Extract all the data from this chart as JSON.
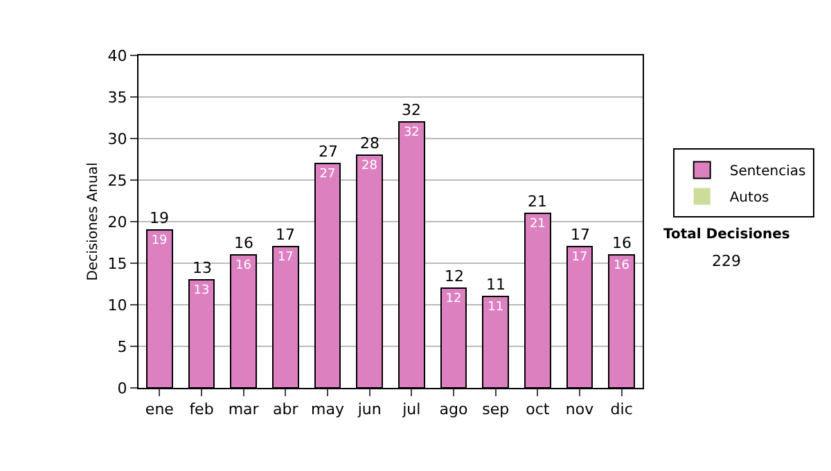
{
  "chart_data": {
    "type": "bar",
    "ylabel": "Decisiones Anual",
    "categories": [
      "ene",
      "feb",
      "mar",
      "abr",
      "may",
      "jun",
      "jul",
      "ago",
      "sep",
      "oct",
      "nov",
      "dic"
    ],
    "series": [
      {
        "name": "Sentencias",
        "color": "#dd80c0",
        "values": [
          19,
          13,
          16,
          17,
          27,
          28,
          32,
          12,
          11,
          21,
          17,
          16
        ],
        "value_labels": [
          "19",
          "13",
          "16",
          "17",
          "27",
          "28",
          "32",
          "12",
          "11",
          "21",
          "17",
          "16"
        ]
      },
      {
        "name": "Autos",
        "color": "#ccdd99",
        "values": [
          0,
          0,
          0,
          0,
          0,
          0,
          0,
          0,
          0,
          0,
          0,
          0
        ]
      }
    ],
    "stacked": true,
    "totals": [
      "19",
      "13",
      "16",
      "17",
      "27",
      "28",
      "32",
      "12",
      "11",
      "21",
      "17",
      "16"
    ],
    "ylim": [
      0,
      40
    ],
    "yticks": [
      0,
      5,
      10,
      15,
      20,
      25,
      30,
      35,
      40
    ],
    "grid": "y",
    "legend": "right",
    "annotations": [
      "Total Decisiones",
      "229"
    ]
  }
}
